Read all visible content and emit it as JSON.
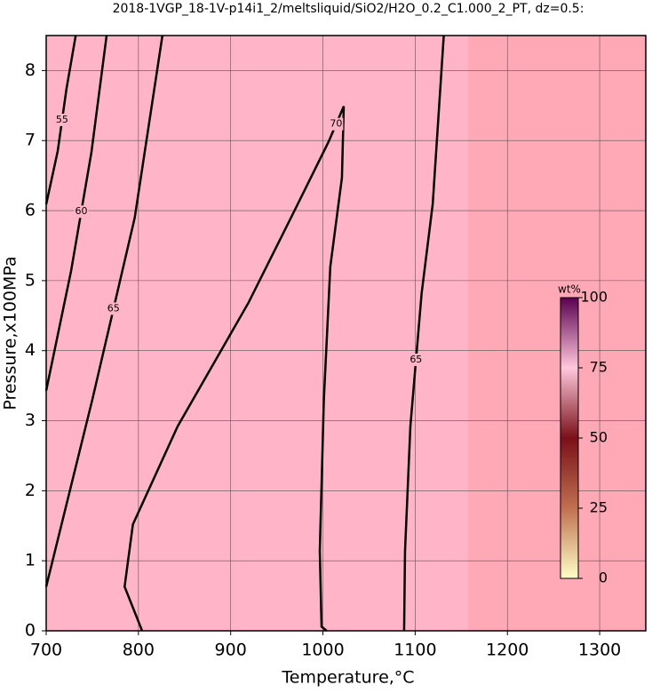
{
  "chart_data": {
    "type": "contour",
    "title": "2018-1VGP_18-1V-p14i1_2/meltsliquid/SiO2/H2O_0.2_C1.000_2_PT, dz=0.5:",
    "x_label": "Temperature,°C",
    "y_label": "Pressure,x100MPa",
    "xlim": [
      700,
      1350
    ],
    "ylim": [
      0,
      8.5
    ],
    "xticks": [
      700,
      800,
      900,
      1000,
      1100,
      1200,
      1300
    ],
    "yticks": [
      0,
      1,
      2,
      3,
      4,
      5,
      6,
      7,
      8
    ],
    "grid": true,
    "series": [
      {
        "name": "55",
        "color": "#000000",
        "x": [
          700,
          712.5,
          722,
          732
        ],
        "y": [
          6.09,
          6.85,
          7.74,
          8.5
        ]
      },
      {
        "name": "60",
        "color": "#000000",
        "x": [
          700,
          727,
          749,
          765.5
        ],
        "y": [
          3.43,
          5.14,
          6.83,
          8.5
        ]
      },
      {
        "name": "65",
        "color": "#000000",
        "x": [
          700,
          750,
          796,
          826
        ],
        "y": [
          0.63,
          3.3,
          5.9,
          8.5
        ]
      },
      {
        "name": "70",
        "color": "#000000",
        "x": [
          804,
          785,
          794,
          842.5,
          919.5,
          967.7,
          1006,
          1022.6,
          1020.6,
          1008,
          1001,
          996.6,
          998.5,
          1004
        ],
        "y": [
          0,
          0.63,
          1.52,
          2.92,
          4.69,
          5.96,
          6.98,
          7.49,
          6.47,
          5.2,
          3.3,
          1.14,
          0.06,
          0
        ]
      },
      {
        "name": "65",
        "color": "#000000",
        "x": [
          1088,
          1089,
          1094.8,
          1107,
          1119,
          1131
        ],
        "y": [
          0,
          1.14,
          2.92,
          4.82,
          6.09,
          8.5
        ]
      }
    ],
    "colorbar": {
      "label": "wt%",
      "lim": [
        0,
        100
      ],
      "ticks": [
        0,
        25,
        50,
        75,
        100
      ],
      "colors": [
        "#ffffc8",
        "#c07050",
        "#7a1018",
        "#ffc8dc",
        "#5a0050"
      ]
    }
  }
}
